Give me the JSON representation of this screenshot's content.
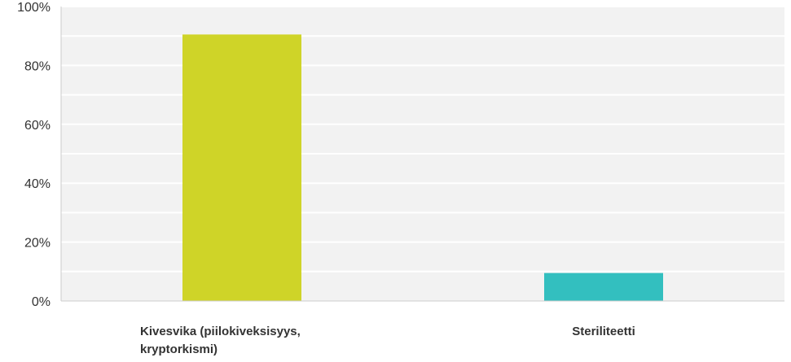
{
  "chart_data": {
    "type": "bar",
    "categories": [
      [
        "Kivesvika (piilokiveksisyys,",
        "kryptorkismi)"
      ],
      [
        "Steriliteetti"
      ]
    ],
    "values": [
      90.5,
      9.5
    ],
    "colors": [
      "#cfd428",
      "#33bfbf"
    ],
    "yticks": [
      "0%",
      "20%",
      "40%",
      "60%",
      "80%",
      "100%"
    ],
    "ylim": [
      0,
      100
    ],
    "grid": true,
    "background": "#f2f2f2",
    "gridline_color": "#ffffff"
  }
}
